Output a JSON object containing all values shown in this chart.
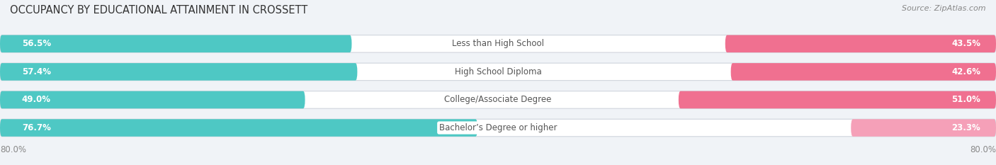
{
  "title": "OCCUPANCY BY EDUCATIONAL ATTAINMENT IN CROSSETT",
  "source": "Source: ZipAtlas.com",
  "categories": [
    "Less than High School",
    "High School Diploma",
    "College/Associate Degree",
    "Bachelor’s Degree or higher"
  ],
  "owner_values": [
    56.5,
    57.4,
    49.0,
    76.7
  ],
  "renter_values": [
    43.5,
    42.6,
    51.0,
    23.3
  ],
  "owner_color": "#4EC8C4",
  "renter_colors": [
    "#F07090",
    "#F07090",
    "#F07090",
    "#F5A0B8"
  ],
  "axis_limit": 80.0,
  "axis_label_left": "80.0%",
  "axis_label_right": "80.0%",
  "bg_color": "#f0f3f7",
  "bar_bg_color": "#e4e8ee",
  "title_fontsize": 10.5,
  "bar_label_fontsize": 8.5,
  "category_fontsize": 8.5,
  "legend_fontsize": 8.5,
  "source_fontsize": 8.0
}
